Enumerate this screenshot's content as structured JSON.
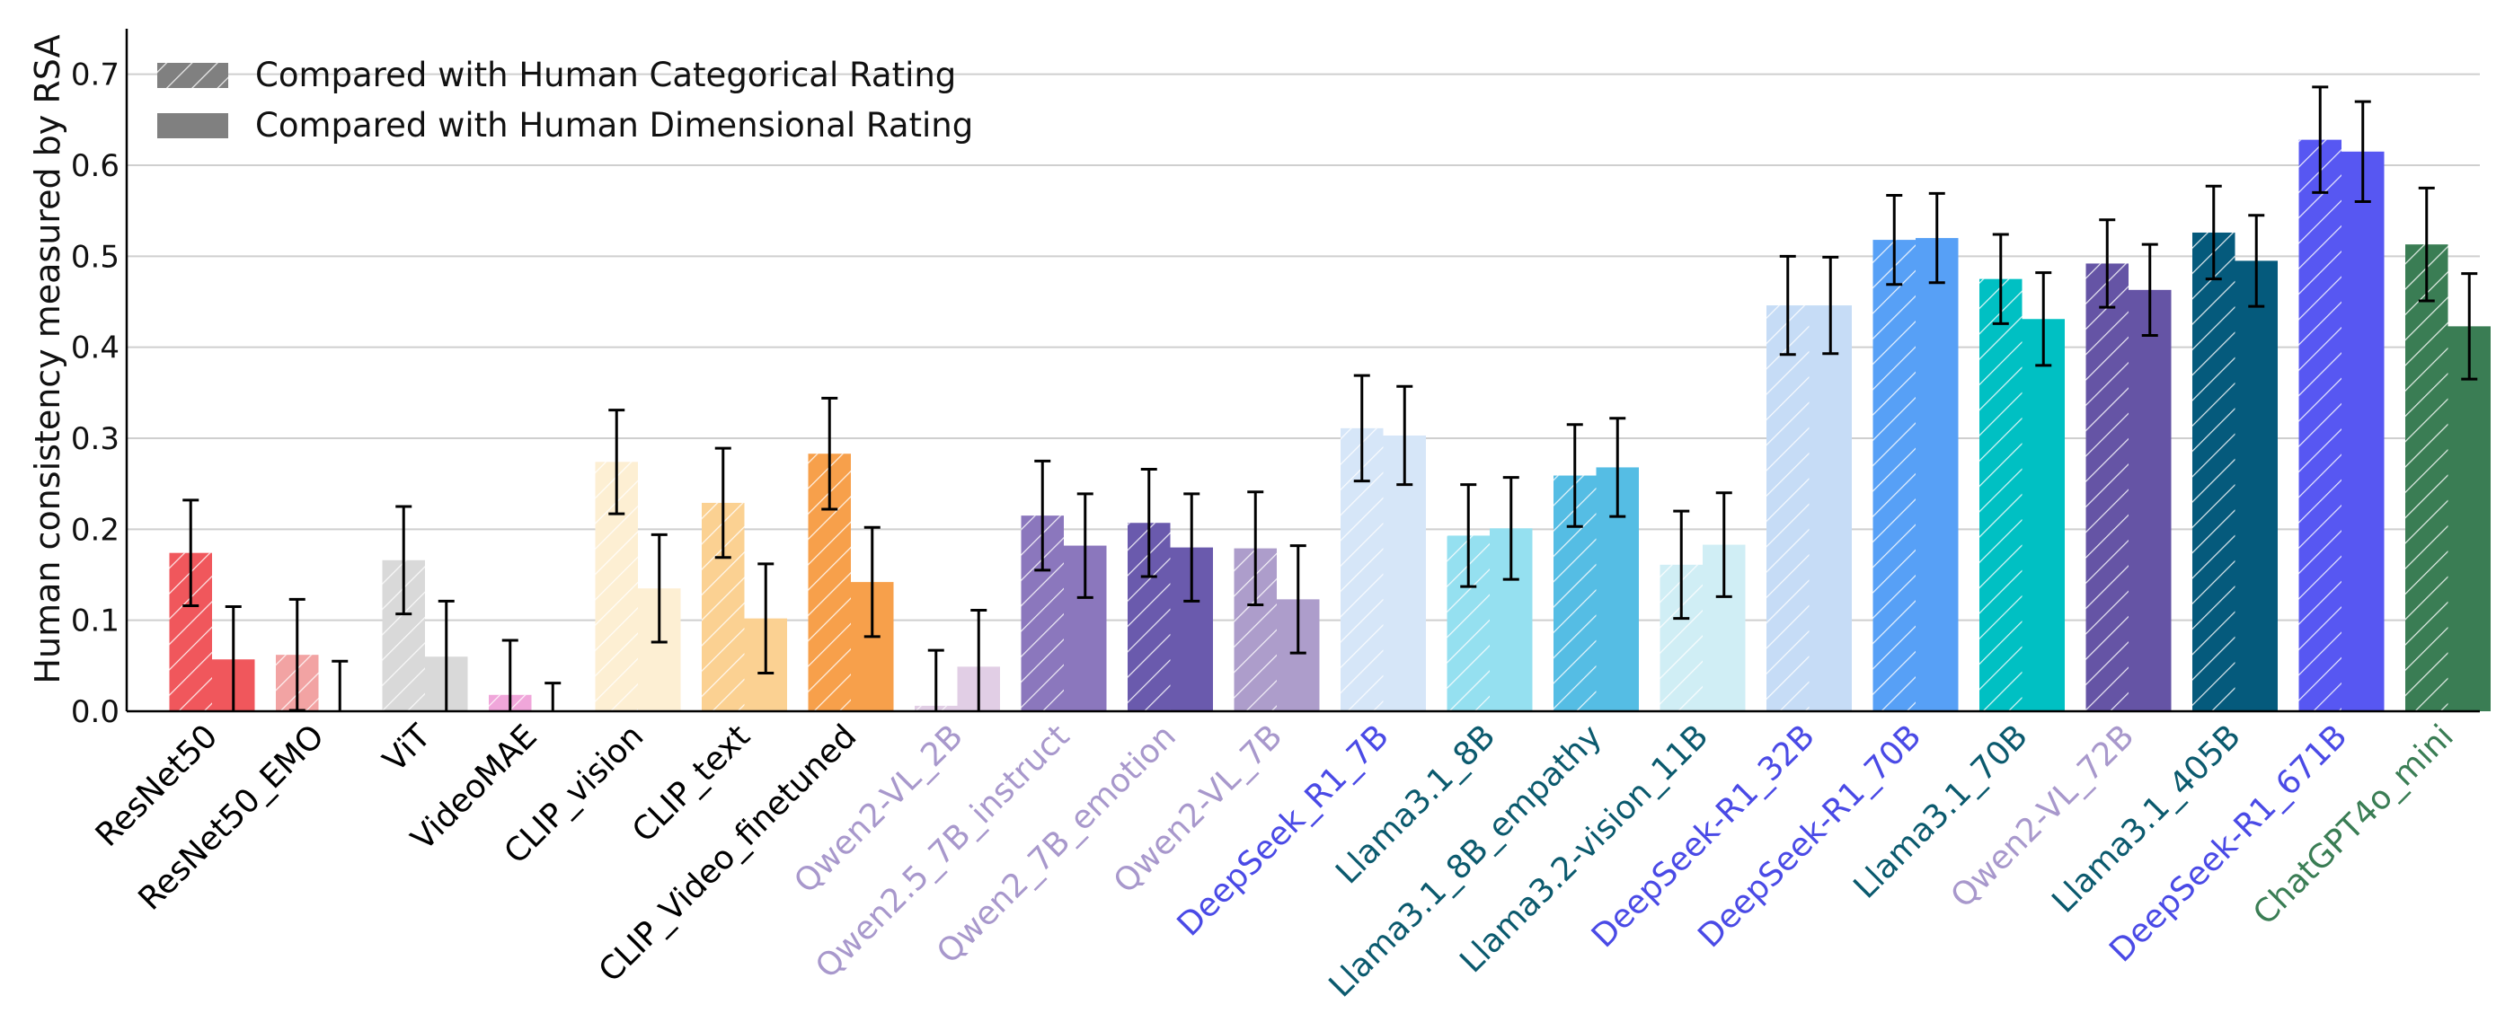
{
  "chart_data": {
    "type": "bar",
    "title": "",
    "xlabel": "",
    "ylabel": "Human consistency measured by RSA",
    "ylim": [
      0,
      0.75
    ],
    "yticks": [
      "0.0",
      "0.1",
      "0.2",
      "0.3",
      "0.4",
      "0.5",
      "0.6",
      "0.7"
    ],
    "grid": "horizontal",
    "legend_position": "top-left",
    "series": [
      {
        "name": "Compared with Human Categorical Rating",
        "style": "hatched"
      },
      {
        "name": "Compared with Human Dimensional Rating",
        "style": "solid"
      }
    ],
    "categories": [
      {
        "label": "ResNet50",
        "label_color": "#000000",
        "bar_color": "#f0575c",
        "categorical": 0.174,
        "categorical_err": 0.058,
        "dimensional": 0.057,
        "dimensional_err": 0.058
      },
      {
        "label": "ResNet50_EMO",
        "label_color": "#000000",
        "bar_color": "#f2a3a3",
        "categorical": 0.062,
        "categorical_err": 0.061,
        "dimensional": 0.0,
        "dimensional_err": 0.055
      },
      {
        "label": "ViT",
        "label_color": "#000000",
        "bar_color": "#d9d9d9",
        "categorical": 0.166,
        "categorical_err": 0.059,
        "dimensional": 0.06,
        "dimensional_err": 0.061
      },
      {
        "label": "VideoMAE",
        "label_color": "#000000",
        "bar_color": "#f0a6da",
        "categorical": 0.018,
        "categorical_err": 0.06,
        "dimensional": 0.0,
        "dimensional_err": 0.031
      },
      {
        "label": "CLIP_vision",
        "label_color": "#000000",
        "bar_color": "#fdefd3",
        "categorical": 0.274,
        "categorical_err": 0.057,
        "dimensional": 0.135,
        "dimensional_err": 0.059
      },
      {
        "label": "CLIP_text",
        "label_color": "#000000",
        "bar_color": "#fbd192",
        "categorical": 0.229,
        "categorical_err": 0.06,
        "dimensional": 0.102,
        "dimensional_err": 0.06
      },
      {
        "label": "CLIP_Video_finetuned",
        "label_color": "#000000",
        "bar_color": "#f7a04b",
        "categorical": 0.283,
        "categorical_err": 0.061,
        "dimensional": 0.142,
        "dimensional_err": 0.06
      },
      {
        "label": "Qwen2-VL_2B",
        "label_color": "#a898cc",
        "bar_color": "#e1cee5",
        "categorical": 0.006,
        "categorical_err": 0.061,
        "dimensional": 0.049,
        "dimensional_err": 0.062
      },
      {
        "label": "Qwen2.5_7B_instruct",
        "label_color": "#a898cc",
        "bar_color": "#8b77bd",
        "categorical": 0.215,
        "categorical_err": 0.06,
        "dimensional": 0.182,
        "dimensional_err": 0.057
      },
      {
        "label": "Qwen2_7B_emotion",
        "label_color": "#a898cc",
        "bar_color": "#6a5aad",
        "categorical": 0.207,
        "categorical_err": 0.059,
        "dimensional": 0.18,
        "dimensional_err": 0.059
      },
      {
        "label": "Qwen2-VL_7B",
        "label_color": "#a898cc",
        "bar_color": "#ad9dcb",
        "categorical": 0.179,
        "categorical_err": 0.062,
        "dimensional": 0.123,
        "dimensional_err": 0.059
      },
      {
        "label": "DeepSeek_R1_7B",
        "label_color": "#4a4ae6",
        "bar_color": "#d6e6f8",
        "categorical": 0.311,
        "categorical_err": 0.058,
        "dimensional": 0.303,
        "dimensional_err": 0.054
      },
      {
        "label": "Llama3.1_8B",
        "label_color": "#0b5a6e",
        "bar_color": "#95e0f0",
        "categorical": 0.193,
        "categorical_err": 0.056,
        "dimensional": 0.201,
        "dimensional_err": 0.056
      },
      {
        "label": "Llama3.1_8B_empathy",
        "label_color": "#0b5a6e",
        "bar_color": "#55bde4",
        "categorical": 0.259,
        "categorical_err": 0.056,
        "dimensional": 0.268,
        "dimensional_err": 0.054
      },
      {
        "label": "Llama3.2-vision_11B",
        "label_color": "#0b5a6e",
        "bar_color": "#d0eef5",
        "categorical": 0.161,
        "categorical_err": 0.059,
        "dimensional": 0.183,
        "dimensional_err": 0.057
      },
      {
        "label": "DeepSeek-R1_32B",
        "label_color": "#4a4ae6",
        "bar_color": "#c6dcf6",
        "categorical": 0.446,
        "categorical_err": 0.054,
        "dimensional": 0.446,
        "dimensional_err": 0.053
      },
      {
        "label": "DeepSeek-R1_70B",
        "label_color": "#4a4ae6",
        "bar_color": "#57a0f6",
        "categorical": 0.518,
        "categorical_err": 0.049,
        "dimensional": 0.52,
        "dimensional_err": 0.049
      },
      {
        "label": "Llama3.1_70B",
        "label_color": "#0b5a6e",
        "bar_color": "#00c0c3",
        "categorical": 0.475,
        "categorical_err": 0.049,
        "dimensional": 0.431,
        "dimensional_err": 0.051
      },
      {
        "label": "Qwen2-VL_72B",
        "label_color": "#a898cc",
        "bar_color": "#6554a5",
        "categorical": 0.492,
        "categorical_err": 0.048,
        "dimensional": 0.463,
        "dimensional_err": 0.05
      },
      {
        "label": "Llama3.1_405B",
        "label_color": "#0b5a6e",
        "bar_color": "#055a7c",
        "categorical": 0.526,
        "categorical_err": 0.051,
        "dimensional": 0.495,
        "dimensional_err": 0.05
      },
      {
        "label": "DeepSeek-R1_671B",
        "label_color": "#4a4ae6",
        "bar_color": "#5757f2",
        "categorical": 0.628,
        "categorical_err": 0.058,
        "dimensional": 0.615,
        "dimensional_err": 0.055
      },
      {
        "label": "ChatGPT4o_mini",
        "label_color": "#3a7d54",
        "bar_color": "#3a7d54",
        "categorical": 0.513,
        "categorical_err": 0.062,
        "dimensional": 0.423,
        "dimensional_err": 0.058
      }
    ]
  }
}
